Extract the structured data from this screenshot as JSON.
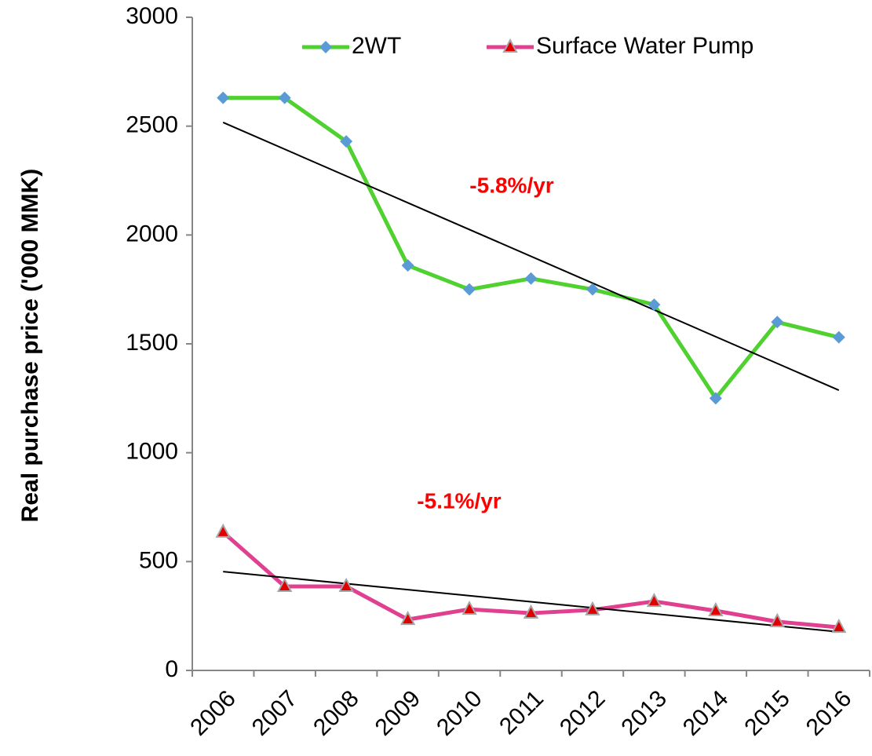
{
  "chart_data": {
    "type": "line",
    "y_label": "Real purchase price ('000 MMK)",
    "categories": [
      "2006",
      "2007",
      "2008",
      "2009",
      "2010",
      "2011",
      "2012",
      "2013",
      "2014",
      "2015",
      "2016"
    ],
    "series": [
      {
        "name": "2WT",
        "color": "#4fd12f",
        "marker": "diamond",
        "marker_color": "#5b9bd5",
        "values": [
          2630,
          2630,
          2430,
          1860,
          1750,
          1800,
          1750,
          1680,
          1250,
          1600,
          1530
        ],
        "trend": [
          2517,
          1287
        ]
      },
      {
        "name": "Surface Water Pump",
        "color": "#e0408f",
        "marker": "triangle",
        "marker_color": "#e00000",
        "values": [
          635,
          386,
          386,
          234,
          281,
          263,
          278,
          317,
          274,
          224,
          198
        ],
        "trend": [
          454,
          177
        ]
      }
    ],
    "trend_color": "#000000",
    "annotations": [
      "-5.8%/yr",
      "-5.1%/yr"
    ],
    "annotation_color": "#ff0000",
    "ylim": [
      0,
      3000
    ],
    "yticks": [
      0,
      500,
      1000,
      1500,
      2000,
      2500,
      3000
    ],
    "legend": "top",
    "grid": false
  }
}
